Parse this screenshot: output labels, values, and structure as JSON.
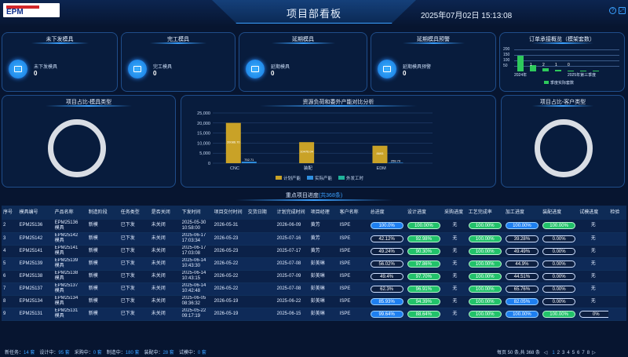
{
  "header": {
    "logo_text": "EPM",
    "title": "项目部看板",
    "datetime": "2025年07月02日 15:13:08",
    "help_icon": "question-icon",
    "fullscreen_icon": "fullscreen-icon"
  },
  "kpis": [
    {
      "title": "未下发模具",
      "label": "未下发模具",
      "value": "0",
      "icon": "folder-icon"
    },
    {
      "title": "完工模具",
      "label": "完工模具",
      "value": "0",
      "icon": "folder-icon"
    },
    {
      "title": "延期模具",
      "label": "延期模具",
      "value": "0",
      "icon": "folder-icon"
    },
    {
      "title": "延期模具预警",
      "label": "延期模具预警",
      "value": "0",
      "icon": "folder-icon"
    }
  ],
  "order_panel": {
    "title": "订单承接概览（模架套数）",
    "legend": "季度实际套数",
    "ticks": [
      "200",
      "150",
      "100",
      "50"
    ],
    "x_labels": [
      "2024年",
      "2025年第三季度"
    ],
    "bar_labels": [
      "1",
      "2",
      "1",
      "0"
    ],
    "bars": [
      0.75,
      0.3,
      0.15,
      0.08,
      0.03,
      0.02,
      0.02,
      0.01
    ],
    "color": "#2ec95c"
  },
  "pie_left": {
    "title": "项目占比-模具类型"
  },
  "pie_right": {
    "title": "项目占比-客户类型"
  },
  "chart_data": {
    "type": "bar",
    "title": "资源负荷和委外产能对比分析",
    "categories": [
      "CNC",
      "装配",
      "EDM"
    ],
    "ylim": [
      0,
      25000
    ],
    "yticks": [
      "25,000",
      "20,000",
      "15,000",
      "10,000",
      "5,000",
      "0"
    ],
    "series": [
      {
        "name": "计划产能",
        "values": [
          20086.7,
          10476.04,
          8693
        ],
        "labels": [
          "20086.70",
          "10476.04",
          "8693"
        ],
        "color": "#c9a227"
      },
      {
        "name": "实际产能",
        "values": [
          752.71,
          0,
          259.79
        ],
        "labels": [
          "752.71",
          "",
          "259.79"
        ],
        "color": "#2e8fe0"
      },
      {
        "name": "外发工时",
        "values": [
          0,
          0,
          0
        ],
        "labels": [
          "",
          "",
          ""
        ],
        "color": "#1fb39a"
      }
    ]
  },
  "table": {
    "title": "重点项目进度",
    "count_text": "(共368条)",
    "columns": [
      "序号",
      "模具编号",
      "产品名称",
      "制造阶段",
      "任务类型",
      "是否关闭",
      "下发时间",
      "项目交付时间",
      "交货日期",
      "计划完成时间",
      "项目经理",
      "客户名称",
      "总进度",
      "设计进度",
      "采购进度",
      "工艺完成率",
      "加工进度",
      "装配进度",
      "试模进度",
      "检验"
    ],
    "rows": [
      {
        "no": "2",
        "code": "EPM25136",
        "product": "EPM25136模具",
        "stage": "新模",
        "task": "已下发",
        "closed": "未关闭",
        "issue_date": "2025-05-30",
        "issue_time": "10:58:00",
        "delivery": "2026-05-31",
        "deliver_date": "",
        "plan": "2026-06-09",
        "pm": "黄芳",
        "customer": "ISPE",
        "total": "100.0%",
        "design": "100.00%",
        "purchase": "无",
        "craft": "100.00%",
        "machining": "100.00%",
        "assembly": "100.00%",
        "trial": "无",
        "total_s": "b",
        "design_s": "g",
        "craft_s": "g",
        "mach_s": "b",
        "asm_s": "g"
      },
      {
        "no": "3",
        "code": "EPM25142",
        "product": "EPM25142模具",
        "stage": "新模",
        "task": "已下发",
        "closed": "未关闭",
        "issue_date": "2025-06-17",
        "issue_time": "17:03:34",
        "delivery": "2026-05-23",
        "deliver_date": "",
        "plan": "2025-07-16",
        "pm": "黄芳",
        "customer": "ISPE",
        "total": "42.12%",
        "design": "92.98%",
        "purchase": "无",
        "craft": "100.00%",
        "machining": "39.28%",
        "assembly": "0.00%",
        "trial": "无",
        "total_s": "d",
        "design_s": "g",
        "craft_s": "g",
        "mach_s": "d",
        "asm_s": "d"
      },
      {
        "no": "4",
        "code": "EPM25141",
        "product": "EPM25141模具",
        "stage": "新模",
        "task": "已下发",
        "closed": "未关闭",
        "issue_date": "2025-06-17",
        "issue_time": "17:03:08",
        "delivery": "2026-05-23",
        "deliver_date": "",
        "plan": "2025-07-17",
        "pm": "黄芳",
        "customer": "ISPE",
        "total": "49.24%",
        "design": "90.30%",
        "purchase": "无",
        "craft": "100.00%",
        "machining": "49.49%",
        "assembly": "0.00%",
        "trial": "无",
        "total_s": "d",
        "design_s": "g",
        "craft_s": "g",
        "mach_s": "d",
        "asm_s": "d"
      },
      {
        "no": "5",
        "code": "EPM25139",
        "product": "EPM25139模具",
        "stage": "新模",
        "task": "已下发",
        "closed": "未关闭",
        "issue_date": "2025-06-14",
        "issue_time": "10:43:30",
        "delivery": "2026-05-22",
        "deliver_date": "",
        "plan": "2025-07-08",
        "pm": "彭美琳",
        "customer": "ISPE",
        "total": "56.02%",
        "design": "97.86%",
        "purchase": "无",
        "craft": "100.00%",
        "machining": "44.9%",
        "assembly": "0.00%",
        "trial": "无",
        "total_s": "d",
        "design_s": "g",
        "craft_s": "g",
        "mach_s": "d",
        "asm_s": "d"
      },
      {
        "no": "6",
        "code": "EPM25138",
        "product": "EPM25138模具",
        "stage": "新模",
        "task": "已下发",
        "closed": "未关闭",
        "issue_date": "2025-06-14",
        "issue_time": "10:43:15",
        "delivery": "2026-05-22",
        "deliver_date": "",
        "plan": "2025-07-09",
        "pm": "彭美琳",
        "customer": "ISPE",
        "total": "49.4%",
        "design": "97.70%",
        "purchase": "无",
        "craft": "100.00%",
        "machining": "44.51%",
        "assembly": "0.00%",
        "trial": "无",
        "total_s": "d",
        "design_s": "g",
        "craft_s": "g",
        "mach_s": "d",
        "asm_s": "d"
      },
      {
        "no": "7",
        "code": "EPM25137",
        "product": "EPM25137模具",
        "stage": "新模",
        "task": "已下发",
        "closed": "未关闭",
        "issue_date": "2025-06-14",
        "issue_time": "10:42:48",
        "delivery": "2026-05-22",
        "deliver_date": "",
        "plan": "2025-07-08",
        "pm": "彭美琳",
        "customer": "ISPE",
        "total": "62.3%",
        "design": "96.91%",
        "purchase": "无",
        "craft": "100.00%",
        "machining": "65.76%",
        "assembly": "0.00%",
        "trial": "无",
        "total_s": "d",
        "design_s": "g",
        "craft_s": "g",
        "mach_s": "d",
        "asm_s": "d"
      },
      {
        "no": "8",
        "code": "EPM25134",
        "product": "EPM25134模具",
        "stage": "新模",
        "task": "已下发",
        "closed": "未关闭",
        "issue_date": "2025-06-05",
        "issue_time": "08:36:32",
        "delivery": "2026-05-19",
        "deliver_date": "",
        "plan": "2025-06-22",
        "pm": "彭美琳",
        "customer": "ISPE",
        "total": "85.93%",
        "design": "94.39%",
        "purchase": "无",
        "craft": "100.00%",
        "machining": "82.05%",
        "assembly": "0.00%",
        "trial": "无",
        "total_s": "b",
        "design_s": "g",
        "craft_s": "g",
        "mach_s": "b",
        "asm_s": "d"
      },
      {
        "no": "9",
        "code": "EPM25131",
        "product": "EPM25131模具",
        "stage": "新模",
        "task": "已下发",
        "closed": "未关闭",
        "issue_date": "2025-05-22",
        "issue_time": "09:17:19",
        "delivery": "2026-05-19",
        "deliver_date": "",
        "plan": "2025-06-15",
        "pm": "彭美琳",
        "customer": "ISPE",
        "total": "99.64%",
        "design": "88.64%",
        "purchase": "无",
        "craft": "100.00%",
        "machining": "100.00%",
        "assembly": "100.00%",
        "trial": "0%",
        "total_s": "b",
        "design_s": "g",
        "craft_s": "g",
        "mach_s": "b",
        "asm_s": "g"
      }
    ]
  },
  "footer": {
    "stats": [
      {
        "label": "新任务：",
        "value": "14 套"
      },
      {
        "label": "设计中：",
        "value": "95 套"
      },
      {
        "label": "采购中：",
        "value": "0 套"
      },
      {
        "label": "制造中：",
        "value": "180 套"
      },
      {
        "label": "装配中：",
        "value": "28 套"
      },
      {
        "label": "试模中：",
        "value": "0 套"
      }
    ],
    "pager_text": "每页 50 条,共 368 条",
    "pages": [
      "1",
      "2",
      "3",
      "4",
      "5",
      "6",
      "7",
      "8"
    ]
  }
}
